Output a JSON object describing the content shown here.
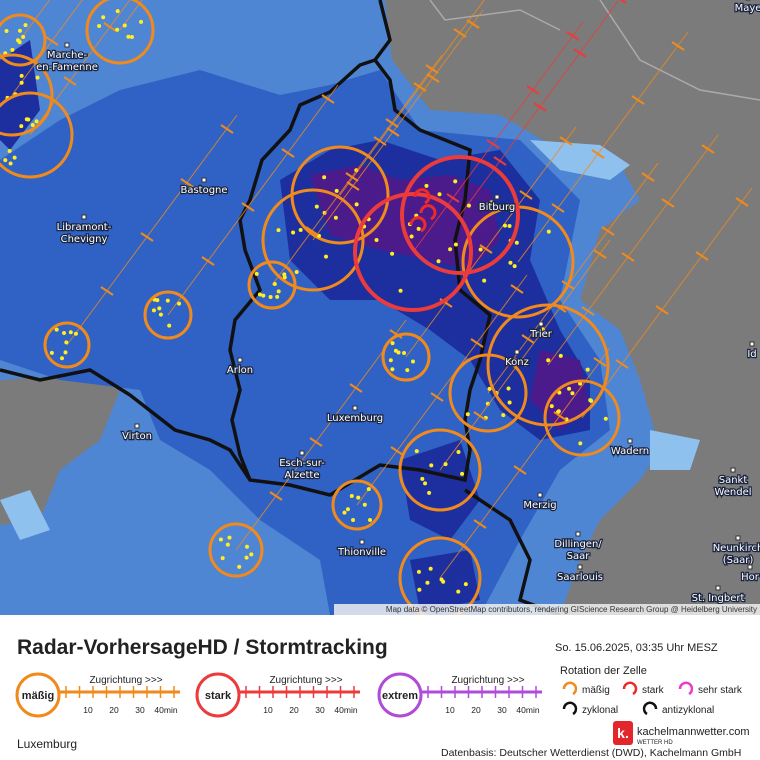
{
  "map": {
    "places": [
      {
        "lines": [
          "Maye"
        ]
      },
      {
        "lines": [
          "Marche-",
          "en-Famenne"
        ]
      },
      {
        "lines": [
          "Bastogne"
        ]
      },
      {
        "lines": [
          "Libramont-",
          "Chevigny"
        ]
      },
      {
        "lines": [
          "Arlon"
        ]
      },
      {
        "lines": [
          "Virton"
        ]
      },
      {
        "lines": [
          "Luxemburg"
        ]
      },
      {
        "lines": [
          "Esch-sur-",
          "Alzette"
        ]
      },
      {
        "lines": [
          "Thionville"
        ]
      },
      {
        "lines": [
          "Bitburg"
        ]
      },
      {
        "lines": [
          "Trier"
        ]
      },
      {
        "lines": [
          "Konz"
        ]
      },
      {
        "lines": [
          "Wadern"
        ]
      },
      {
        "lines": [
          "Merzig"
        ]
      },
      {
        "lines": [
          "Dillingen/",
          "Saar"
        ]
      },
      {
        "lines": [
          "Saarlouis"
        ]
      },
      {
        "lines": [
          "Sankt",
          "Wendel"
        ]
      },
      {
        "lines": [
          "Neunkirch",
          "(Saar)"
        ]
      },
      {
        "lines": [
          "Hor"
        ]
      },
      {
        "lines": [
          "St. Ingbert"
        ]
      },
      {
        "lines": [
          "Id"
        ]
      }
    ],
    "attribution": "Map data © OpenStreetMap contributors, rendering GIScience Research Group @ Heidelberg University"
  },
  "legend": {
    "title": "Radar-VorhersageHD / Stormtracking",
    "timestamp": "So. 15.06.2025, 03:35 Uhr MESZ",
    "track_heading": "Zugrichtung >>>",
    "track_scale": [
      "10",
      "20",
      "30",
      "40min"
    ],
    "tracks": [
      {
        "label": "mäßig",
        "color": "#f08a1c"
      },
      {
        "label": "stark",
        "color": "#ec3b3b"
      },
      {
        "label": "extrem",
        "color": "#b04ad8"
      }
    ],
    "rotation_title": "Rotation der Zelle",
    "rotation": [
      {
        "label": "mäßig",
        "color": "#f08a1c"
      },
      {
        "label": "stark",
        "color": "#ec2b2b"
      },
      {
        "label": "sehr stark",
        "color": "#e83cd0"
      }
    ],
    "rotation_direction": [
      "zyklonal",
      "antizyklonal"
    ],
    "brand": "kachelmannwetter.com",
    "brand_sub": "WETTER HD",
    "region": "Luxemburg",
    "source": "Datenbasis: Deutscher Wetterdienst (DWD), Kachelmann GmbH"
  }
}
